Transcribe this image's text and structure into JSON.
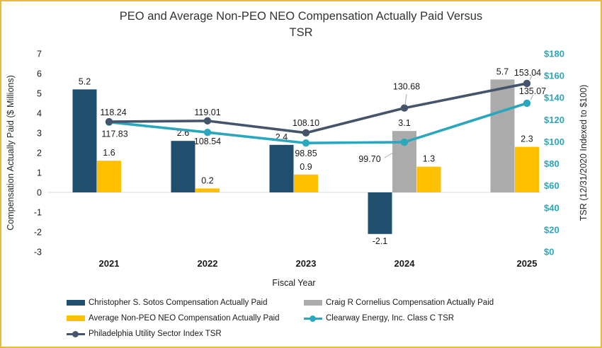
{
  "frame": {
    "border_color": "#E5BB3F",
    "background": "#FFFFFF"
  },
  "chart_data": {
    "type": "combo-bar-line",
    "title_line1": "PEO and Average Non-PEO NEO Compensation Actually Paid Versus",
    "title_line2": "TSR",
    "xlabel": "Fiscal Year",
    "categories": [
      "2021",
      "2022",
      "2023",
      "2024",
      "2025"
    ],
    "left_axis": {
      "label": "Compensation Actually Paid ($ Millions)",
      "min": -3,
      "max": 7,
      "step": 1
    },
    "right_axis": {
      "label": "TSR (12/31/2020 Indexed to $100)",
      "min": 0,
      "max": 180,
      "step": 20,
      "tick_prefix": "$"
    },
    "grid": "zero-line-only",
    "legend_position": "bottom",
    "bar_series": [
      {
        "key": "sotos",
        "name": "Christopher S. Sotos Compensation Actually Paid",
        "color": "#1F4E6F",
        "values": [
          5.2,
          2.6,
          2.4,
          -2.1,
          null
        ]
      },
      {
        "key": "cornelius",
        "name": "Craig R Cornelius Compensation Actually Paid",
        "color": "#ABABAB",
        "values": [
          null,
          null,
          null,
          3.1,
          5.7
        ]
      },
      {
        "key": "avg-neo",
        "name": "Average Non-PEO NEO Compensation Actually Paid",
        "color": "#FFC000",
        "values": [
          1.6,
          0.2,
          0.9,
          1.3,
          2.3
        ]
      }
    ],
    "line_series": [
      {
        "key": "clearway-tsr",
        "name": "Clearway Energy, Inc. Class C TSR",
        "color": "#2AA7BC",
        "label_color": "#2AA7BC",
        "values": [
          117.83,
          108.54,
          98.85,
          99.7,
          135.07
        ]
      },
      {
        "key": "philly-tsr",
        "name": "Philadelphia Utility Sector Index TSR",
        "color": "#44546A",
        "label_color": "#1A1A1A",
        "values": [
          118.24,
          119.01,
          108.1,
          130.68,
          153.04
        ]
      }
    ]
  },
  "legend": {
    "items": [
      {
        "key": "sotos",
        "label": "Christopher S. Sotos Compensation Actually Paid",
        "swatch": "bar",
        "color": "#1F4E6F"
      },
      {
        "key": "cornelius",
        "label": "Craig R Cornelius Compensation Actually Paid",
        "swatch": "bar",
        "color": "#ABABAB"
      },
      {
        "key": "avg-neo",
        "label": "Average Non-PEO NEO Compensation Actually Paid",
        "swatch": "bar",
        "color": "#FFC000"
      },
      {
        "key": "clearway-tsr",
        "label": "Clearway Energy, Inc. Class C TSR",
        "swatch": "line",
        "color": "#2AA7BC"
      },
      {
        "key": "philly-tsr",
        "label": "Philadelphia Utility Sector Index TSR",
        "swatch": "line",
        "color": "#44546A"
      }
    ]
  },
  "colors": {
    "gridline": "#D9D9D9",
    "leader_line": "#A6A6A6",
    "right_axis_text": "#2AA7BC"
  }
}
